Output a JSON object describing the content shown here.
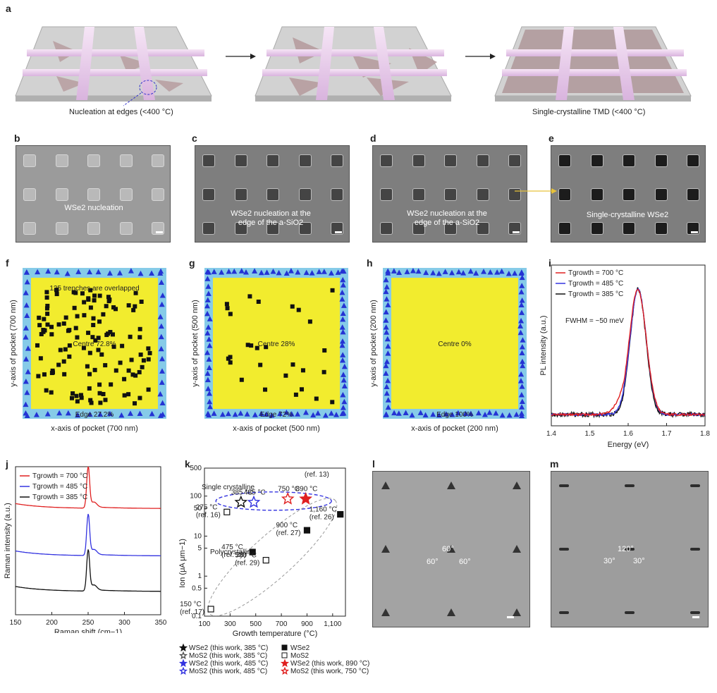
{
  "panel_labels": {
    "a": "a",
    "b": "b",
    "c": "c",
    "d": "d",
    "e": "e",
    "f": "f",
    "g": "g",
    "h": "h",
    "i": "i",
    "j": "j",
    "k": "k",
    "l": "l",
    "m": "m"
  },
  "a": {
    "caption_left": "Nucleation at edges (<400 °C)",
    "caption_right": "Single-crystalline TMD (<400 °C)"
  },
  "b": {
    "label": "WSe2 nucleation"
  },
  "c": {
    "label_line1": "WSe2 nucleation at the",
    "label_line2": "edge of the a-SiO2"
  },
  "d": {
    "label_line1": "WSe2 nucleation at the",
    "label_line2": "edge of the a-SiO2"
  },
  "e": {
    "label": "Single-crystalline WSe2"
  },
  "maps": [
    {
      "id": "f",
      "note": "125 trenches are overlapped",
      "centre": "Centre 72.8%",
      "edge": "Edge 27.2%",
      "xlabel": "x-axis of pocket (700 nm)",
      "ylabel": "y-axis of pocket (700 nm)"
    },
    {
      "id": "g",
      "note": "",
      "centre": "Centre 28%",
      "edge": "Edge 72%",
      "xlabel": "x-axis of pocket (500 nm)",
      "ylabel": "y-axis of pocket (500 nm)"
    },
    {
      "id": "h",
      "note": "",
      "centre": "Centre 0%",
      "edge": "Edge 100%",
      "xlabel": "x-axis of pocket (200 nm)",
      "ylabel": "y-axis of pocket (200 nm)"
    }
  ],
  "colors": {
    "trench": "#f2ec2e",
    "edge_band": "#86cbe8",
    "triangle": "#2433d4",
    "square": "#111111",
    "red": "#e02020",
    "blue": "#3434e0",
    "black": "#111111"
  },
  "chart_data": [
    {
      "id": "i",
      "type": "line",
      "xlabel": "Energy (eV)",
      "ylabel": "PL intensity (a.u.)",
      "xlim": [
        1.4,
        1.8
      ],
      "xticks": [
        "1.4",
        "1.5",
        "1.6",
        "1.7",
        "1.8"
      ],
      "annotation": "FWHM = ~50 meV",
      "series": [
        {
          "name": "Tgrowth = 700 °C",
          "color": "#e02020",
          "peak": 1.625,
          "fwhm": 0.052
        },
        {
          "name": "Tgrowth = 485 °C",
          "color": "#3434e0",
          "peak": 1.626,
          "fwhm": 0.05
        },
        {
          "name": "Tgrowth = 385 °C",
          "color": "#111111",
          "peak": 1.626,
          "fwhm": 0.048
        }
      ]
    },
    {
      "id": "j",
      "type": "line",
      "xlabel": "Raman shift (cm−1)",
      "ylabel": "Raman intensity (a.u.)",
      "xlim": [
        150,
        350
      ],
      "xticks": [
        "150",
        "200",
        "250",
        "300",
        "350"
      ],
      "series": [
        {
          "name": "Tgrowth = 700 °C",
          "color": "#e02020",
          "peak": 250,
          "offset": 0.66
        },
        {
          "name": "Tgrowth = 485 °C",
          "color": "#3434e0",
          "peak": 250,
          "offset": 0.34
        },
        {
          "name": "Tgrowth = 385 °C",
          "color": "#111111",
          "peak": 250,
          "offset": 0.1
        }
      ]
    },
    {
      "id": "k",
      "type": "scatter",
      "xlabel": "Growth temperature (°C)",
      "ylabel": "Ion (μA μm−1)",
      "xlim": [
        100,
        1200
      ],
      "ylim": [
        0.1,
        500
      ],
      "yscale": "log",
      "xticks": [
        "100",
        "300",
        "500",
        "700",
        "900",
        "1,100"
      ],
      "yticks": [
        "0.1",
        "0.5",
        "1",
        "5",
        "10",
        "50",
        "100",
        "500"
      ],
      "region_labels": [
        "Single crystalline",
        "Polycrystalline"
      ],
      "points": [
        {
          "x": 385,
          "y": 70,
          "marker": "star",
          "color": "#111111",
          "filled": false,
          "label": "385 °C"
        },
        {
          "x": 485,
          "y": 70,
          "marker": "star",
          "color": "#3434e0",
          "filled": false,
          "label": "485 °C"
        },
        {
          "x": 750,
          "y": 85,
          "marker": "star",
          "color": "#e02020",
          "filled": false,
          "label": "750 °C"
        },
        {
          "x": 890,
          "y": 85,
          "marker": "star",
          "color": "#e02020",
          "filled": true,
          "label": "890 °C"
        },
        {
          "x": 275,
          "y": 40,
          "marker": "square",
          "color": "#111111",
          "filled": false,
          "label": "275 °C (ref. 16)"
        },
        {
          "x": 1160,
          "y": 35,
          "marker": "square",
          "color": "#111111",
          "filled": true,
          "label": "1,160 °C (ref. 26)"
        },
        {
          "x": 900,
          "y": 14,
          "marker": "square",
          "color": "#111111",
          "filled": true,
          "label": "900 °C (ref. 27)"
        },
        {
          "x": 475,
          "y": 4,
          "marker": "square",
          "color": "#111111",
          "filled": true,
          "label": "475 °C (ref. 28)"
        },
        {
          "x": 580,
          "y": 2.5,
          "marker": "square",
          "color": "#111111",
          "filled": false,
          "label": "580 °C (ref. 29)"
        },
        {
          "x": 150,
          "y": 0.15,
          "marker": "square",
          "color": "#111111",
          "filled": false,
          "label": "150 °C (ref. 17)"
        }
      ],
      "ref13": "(ref. 13)",
      "legend": [
        {
          "text": "WSe2 (this work, 385 °C)",
          "marker": "star",
          "color": "#111111",
          "filled": true
        },
        {
          "text": "WSe2",
          "marker": "square",
          "color": "#111111",
          "filled": true
        },
        {
          "text": "MoS2 (this work, 385 °C)",
          "marker": "star",
          "color": "#555555",
          "filled": false
        },
        {
          "text": "MoS2",
          "marker": "square",
          "color": "#111111",
          "filled": false
        },
        {
          "text": "WSe2 (this work, 485 °C)",
          "marker": "star",
          "color": "#3434e0",
          "filled": true
        },
        {
          "text": "WSe2 (this work, 890 °C)",
          "marker": "star",
          "color": "#e02020",
          "filled": true
        },
        {
          "text": "MoS2 (this work, 485 °C)",
          "marker": "star",
          "color": "#3434e0",
          "filled": false
        },
        {
          "text": "MoS2 (this work, 750 °C)",
          "marker": "star",
          "color": "#e02020",
          "filled": false
        }
      ]
    }
  ],
  "l": {
    "a1": "60°",
    "a2": "60°",
    "a3": "60°"
  },
  "m": {
    "a1": "120°",
    "a2": "30°",
    "a3": "30°"
  }
}
